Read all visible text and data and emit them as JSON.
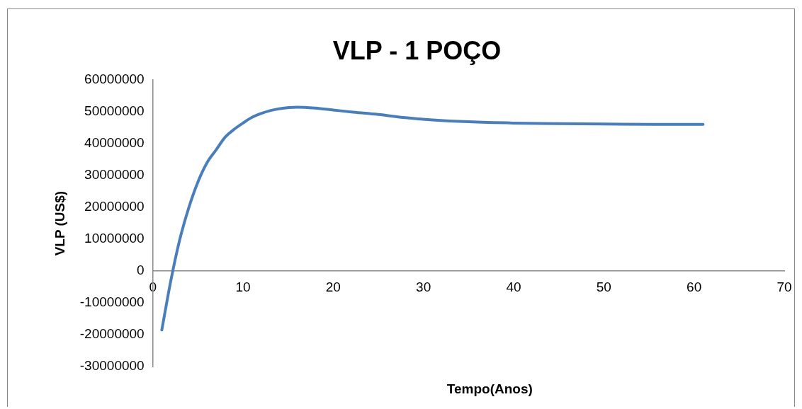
{
  "chart_data": {
    "type": "line",
    "title": "VLP - 1 POÇO",
    "xlabel": "Tempo(Anos)",
    "ylabel": "VLP (US$)",
    "x": [
      1,
      2,
      3,
      4,
      5,
      6,
      7,
      8,
      9,
      10,
      11,
      12,
      13,
      14,
      16,
      18,
      20,
      22,
      25,
      28,
      31,
      35,
      40,
      45,
      50,
      55,
      61
    ],
    "series": [
      {
        "color": "#4a7ebb",
        "values": [
          -18500000,
          -3000000,
          10000000,
          20000000,
          28000000,
          34000000,
          38000000,
          42000000,
          44500000,
          46500000,
          48300000,
          49500000,
          50400000,
          51000000,
          51500000,
          51200000,
          50600000,
          50000000,
          49200000,
          48200000,
          47500000,
          46900000,
          46500000,
          46300000,
          46200000,
          46100000,
          46100000
        ]
      }
    ],
    "xlim": [
      0,
      70
    ],
    "xticks": [
      0,
      10,
      20,
      30,
      40,
      50,
      60,
      70
    ],
    "ylim": [
      -30000000,
      60000000
    ],
    "yticks": [
      -30000000,
      -20000000,
      -10000000,
      0,
      10000000,
      20000000,
      30000000,
      40000000,
      50000000,
      60000000
    ],
    "grid": false,
    "legend": false,
    "marker": "none",
    "line_style": "solid"
  }
}
